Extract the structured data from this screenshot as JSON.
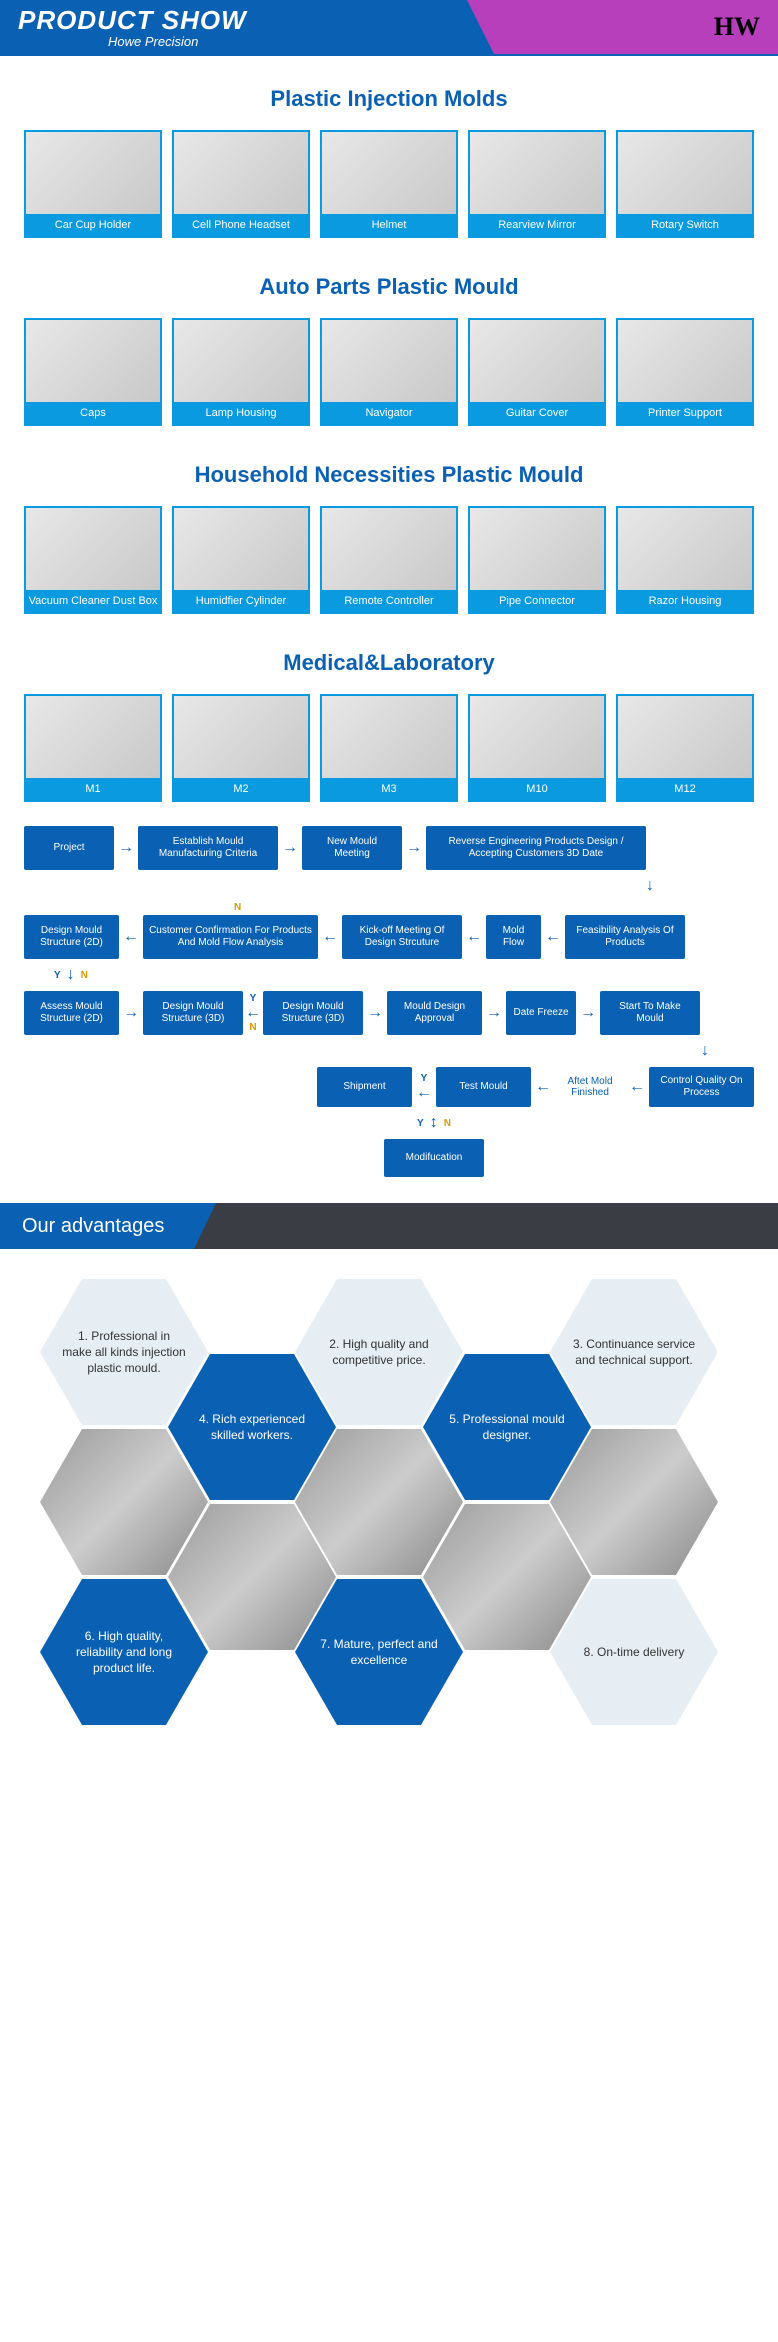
{
  "header": {
    "title": "PRODUCT SHOW",
    "subtitle": "Howe Precision",
    "logo": "HW"
  },
  "sections": [
    {
      "title": "Plastic Injection Molds",
      "items": [
        "Car Cup Holder",
        "Cell Phone Headset",
        "Helmet",
        "Rearview Mirror",
        "Rotary Switch"
      ]
    },
    {
      "title": "Auto Parts Plastic Mould",
      "items": [
        "Caps",
        "Lamp Housing",
        "Navigator",
        "Guitar Cover",
        "Printer Support"
      ]
    },
    {
      "title": "Household Necessities Plastic Mould",
      "items": [
        "Vacuum Cleaner Dust Box",
        "Humidfier Cylinder",
        "Remote Controller",
        "Pipe Connector",
        "Razor Housing"
      ]
    },
    {
      "title": "Medical&Laboratory",
      "items": [
        "M1",
        "M2",
        "M3",
        "M10",
        "M12"
      ]
    }
  ],
  "flow": {
    "r1": [
      "Project",
      "Establish Mould Manufacturing Criteria",
      "New Mould Meeting",
      "Reverse Engineering Products Design / Accepting Customers 3D Date"
    ],
    "r2": [
      "Design Mould Structure (2D)",
      "Customer Confirmation For Products And Mold Flow Analysis",
      "Kick-off Meeting Of Design Strcuture",
      "Mold Flow",
      "Feasibility Analysis Of Products"
    ],
    "r3": [
      "Assess Mould Structure (2D)",
      "Design Mould Structure (3D)",
      "Design Mould Structure (3D)",
      "Mould Design Approval",
      "Date Freeze",
      "Start To Make Mould"
    ],
    "r4": [
      "Shipment",
      "Test Mould",
      "Aftet Mold Finished",
      "Control Quality On Process"
    ],
    "r5": [
      "Modifucation"
    ],
    "labels": {
      "y": "Y",
      "n": "N"
    }
  },
  "advantages": {
    "title": "Our advantages",
    "items": [
      "1. Professional in make all kinds injection plastic mould.",
      "2. High quality and competitive price.",
      "3. Continuance service and technical support.",
      "4. Rich experienced skilled workers.",
      "5. Professional mould designer.",
      "6. High quality, reliability and long product life.",
      "7. Mature, perfect and excellence",
      "8. On-time delivery"
    ]
  },
  "colors": {
    "primary": "#0a60b2",
    "accent": "#0a9ae0",
    "magenta": "#b83fbc",
    "dark": "#3a3e44",
    "hexlight": "#e6edf3"
  }
}
